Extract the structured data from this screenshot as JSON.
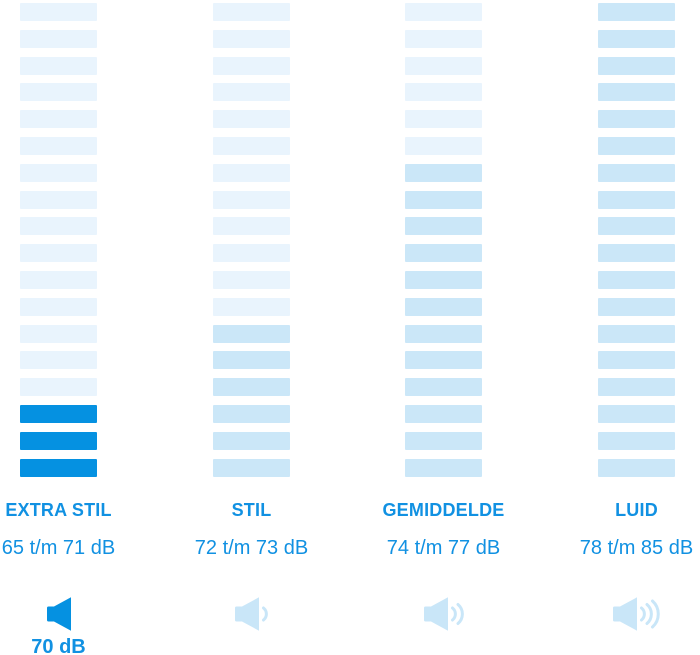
{
  "colors": {
    "background": "#ffffff",
    "bar_light": "#e9f4fd",
    "bar_medium": "#cbe7f8",
    "bar_bright": "#0591e1",
    "label_text": "#1191e2",
    "speaker_light": "#c9e6f8",
    "speaker_bright": "#0591e1"
  },
  "chart_data": {
    "type": "bar",
    "description": "Noise-level comparison infographic: four vertical stacks of 18 horizontal bars; the number of tinted bars and speaker sound waves increases with loudness category",
    "bars_per_column": 18,
    "legend_position": "none",
    "grid": false,
    "columns": [
      {
        "label": "EXTRA STIL",
        "range": "65 t/m 71 dB",
        "tinted_bars": 3,
        "tint": "bright",
        "speaker_waves": 0,
        "speaker_style": "bright",
        "value_label": "70 dB"
      },
      {
        "label": "STIL",
        "range": "72 t/m 73 dB",
        "tinted_bars": 6,
        "tint": "medium",
        "speaker_waves": 1,
        "speaker_style": "light",
        "value_label": ""
      },
      {
        "label": "GEMIDDELDE",
        "range": "74 t/m 77 dB",
        "tinted_bars": 12,
        "tint": "medium",
        "speaker_waves": 2,
        "speaker_style": "light",
        "value_label": ""
      },
      {
        "label": "LUID",
        "range": "78 t/m 85 dB",
        "tinted_bars": 18,
        "tint": "medium",
        "speaker_waves": 3,
        "speaker_style": "light",
        "value_label": ""
      }
    ]
  }
}
